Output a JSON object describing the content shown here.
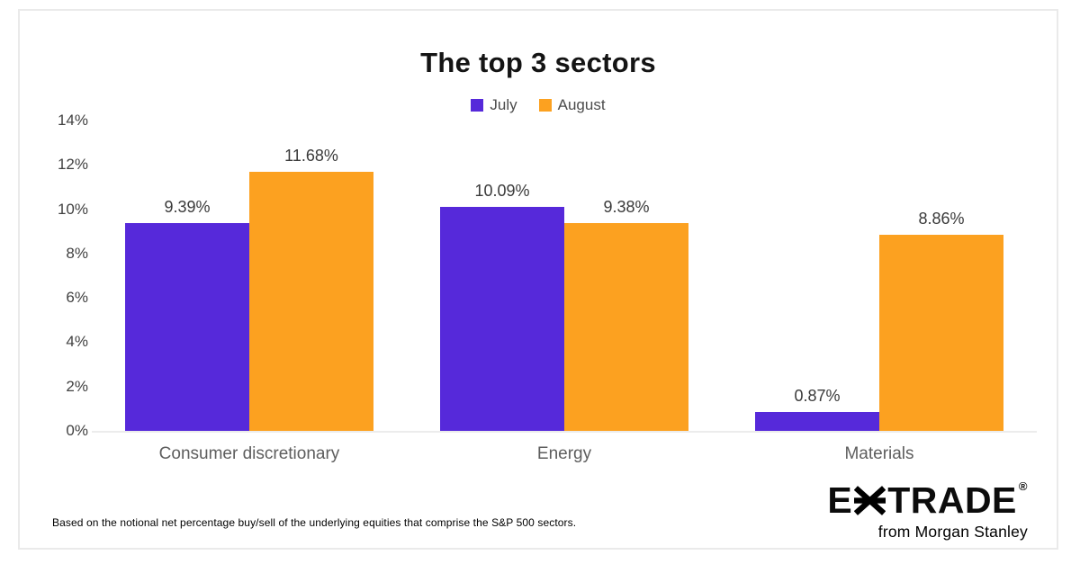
{
  "chart_data": {
    "type": "bar",
    "title": "The top 3 sectors",
    "categories": [
      "Consumer discretionary",
      "Energy",
      "Materials"
    ],
    "series": [
      {
        "name": "July",
        "color": "#5629DA",
        "values": [
          9.39,
          10.09,
          0.87
        ]
      },
      {
        "name": "August",
        "color": "#FCA120",
        "values": [
          11.68,
          9.38,
          8.86
        ]
      }
    ],
    "y_ticks": [
      "14%",
      "12%",
      "10%",
      "8%",
      "6%",
      "4%",
      "2%",
      "0%"
    ],
    "ylim": [
      0,
      14
    ],
    "value_suffix": "%",
    "legend_position": "top-center",
    "grid": false
  },
  "footer": {
    "note": "Based on the notional net percentage buy/sell of the underlying equities that comprise the S&P 500 sectors.",
    "logo": {
      "pre": "E",
      "post": "TRADE",
      "reg": "®",
      "tagline": "from Morgan Stanley",
      "star_blue": "#2BA2DC",
      "star_purple": "#7C2FC4"
    }
  }
}
